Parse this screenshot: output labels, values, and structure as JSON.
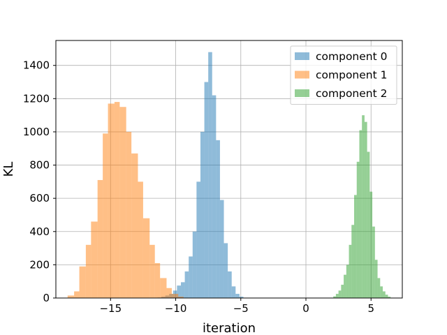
{
  "chart_data": {
    "type": "histogram",
    "xlabel": "iteration",
    "ylabel": "KL",
    "xlim": [
      -19.2,
      7.4
    ],
    "ylim": [
      0,
      1550
    ],
    "x_ticks": [
      -15,
      -10,
      -5,
      0,
      5
    ],
    "x_tick_labels": [
      "−15",
      "−10",
      "−5",
      "0",
      "5"
    ],
    "y_ticks": [
      0,
      200,
      400,
      600,
      800,
      1000,
      1200,
      1400
    ],
    "y_tick_labels": [
      "0",
      "200",
      "400",
      "600",
      "800",
      "1000",
      "1200",
      "1400"
    ],
    "grid": true,
    "legend_position": "top-right",
    "series": [
      {
        "name": "component 0",
        "color": "#1f77b4",
        "bins": [
          [
            -11.4,
            -11.1,
            3
          ],
          [
            -11.1,
            -10.8,
            8
          ],
          [
            -10.8,
            -10.5,
            15
          ],
          [
            -10.5,
            -10.2,
            25
          ],
          [
            -10.2,
            -9.9,
            45
          ],
          [
            -9.9,
            -9.6,
            75
          ],
          [
            -9.6,
            -9.3,
            95
          ],
          [
            -9.3,
            -9.0,
            160
          ],
          [
            -9.0,
            -8.7,
            250
          ],
          [
            -8.7,
            -8.4,
            400
          ],
          [
            -8.4,
            -8.1,
            700
          ],
          [
            -8.1,
            -7.8,
            1000
          ],
          [
            -7.8,
            -7.5,
            1300
          ],
          [
            -7.5,
            -7.2,
            1480
          ],
          [
            -7.2,
            -6.9,
            1220
          ],
          [
            -6.9,
            -6.6,
            950
          ],
          [
            -6.6,
            -6.3,
            590
          ],
          [
            -6.3,
            -6.0,
            330
          ],
          [
            -6.0,
            -5.7,
            160
          ],
          [
            -5.7,
            -5.4,
            70
          ],
          [
            -5.4,
            -5.1,
            25
          ],
          [
            -5.1,
            -4.8,
            8
          ]
        ]
      },
      {
        "name": "component 1",
        "color": "#ff7f0e",
        "bins": [
          [
            -18.3,
            -17.8,
            15
          ],
          [
            -17.8,
            -17.4,
            40
          ],
          [
            -17.4,
            -16.9,
            190
          ],
          [
            -16.9,
            -16.5,
            320
          ],
          [
            -16.5,
            -16.0,
            460
          ],
          [
            -16.0,
            -15.6,
            710
          ],
          [
            -15.6,
            -15.2,
            990
          ],
          [
            -15.2,
            -14.7,
            1170
          ],
          [
            -14.7,
            -14.3,
            1180
          ],
          [
            -14.3,
            -13.8,
            1150
          ],
          [
            -13.8,
            -13.4,
            1000
          ],
          [
            -13.4,
            -12.9,
            870
          ],
          [
            -12.9,
            -12.5,
            700
          ],
          [
            -12.5,
            -12.0,
            480
          ],
          [
            -12.0,
            -11.6,
            320
          ],
          [
            -11.6,
            -11.2,
            210
          ],
          [
            -11.2,
            -10.7,
            120
          ],
          [
            -10.7,
            -10.3,
            60
          ],
          [
            -10.3,
            -9.8,
            25
          ],
          [
            -9.8,
            -9.4,
            8
          ]
        ]
      },
      {
        "name": "component 2",
        "color": "#2ca02c",
        "bins": [
          [
            2.1,
            2.3,
            10
          ],
          [
            2.3,
            2.5,
            25
          ],
          [
            2.5,
            2.7,
            45
          ],
          [
            2.7,
            2.9,
            80
          ],
          [
            2.9,
            3.1,
            140
          ],
          [
            3.1,
            3.3,
            200
          ],
          [
            3.3,
            3.5,
            320
          ],
          [
            3.5,
            3.7,
            440
          ],
          [
            3.7,
            3.9,
            620
          ],
          [
            3.9,
            4.1,
            820
          ],
          [
            4.1,
            4.3,
            1010
          ],
          [
            4.3,
            4.5,
            1100
          ],
          [
            4.5,
            4.7,
            1060
          ],
          [
            4.7,
            4.9,
            880
          ],
          [
            4.9,
            5.1,
            640
          ],
          [
            5.1,
            5.3,
            430
          ],
          [
            5.3,
            5.5,
            230
          ],
          [
            5.5,
            5.7,
            120
          ],
          [
            5.7,
            5.9,
            70
          ],
          [
            5.9,
            6.1,
            40
          ],
          [
            6.1,
            6.3,
            20
          ],
          [
            6.3,
            6.5,
            8
          ]
        ]
      }
    ]
  }
}
